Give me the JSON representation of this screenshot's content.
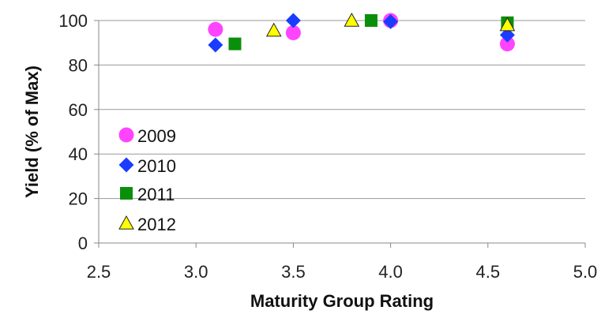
{
  "chart_data": {
    "type": "scatter",
    "title": "",
    "xlabel": "Maturity Group Rating",
    "ylabel": "Yield (% of Max)",
    "xlim": [
      2.5,
      5.0
    ],
    "ylim": [
      0,
      100
    ],
    "x_ticks": [
      "2.5",
      "3.0",
      "3.5",
      "4.0",
      "4.5",
      "5.0"
    ],
    "y_ticks": [
      "0",
      "20",
      "40",
      "60",
      "80",
      "100"
    ],
    "grid": "horizontal",
    "legend_position": "left",
    "series": [
      {
        "name": "2009",
        "marker": "circle",
        "color": "#ff44ff",
        "points": [
          [
            3.1,
            96
          ],
          [
            3.5,
            94.5
          ],
          [
            4.0,
            100
          ],
          [
            4.6,
            89.5
          ]
        ]
      },
      {
        "name": "2010",
        "marker": "diamond",
        "color": "#1a3cff",
        "points": [
          [
            3.1,
            89
          ],
          [
            3.5,
            100
          ],
          [
            4.0,
            99.5
          ],
          [
            4.6,
            93.5
          ]
        ]
      },
      {
        "name": "2011",
        "marker": "square",
        "color": "#0a8f0a",
        "points": [
          [
            3.2,
            89.5
          ],
          [
            3.9,
            100
          ],
          [
            4.6,
            99
          ]
        ]
      },
      {
        "name": "2012",
        "marker": "triangle",
        "color": "#ffff00",
        "points": [
          [
            3.4,
            95.5
          ],
          [
            3.8,
            100
          ],
          [
            4.6,
            98
          ]
        ]
      }
    ]
  }
}
